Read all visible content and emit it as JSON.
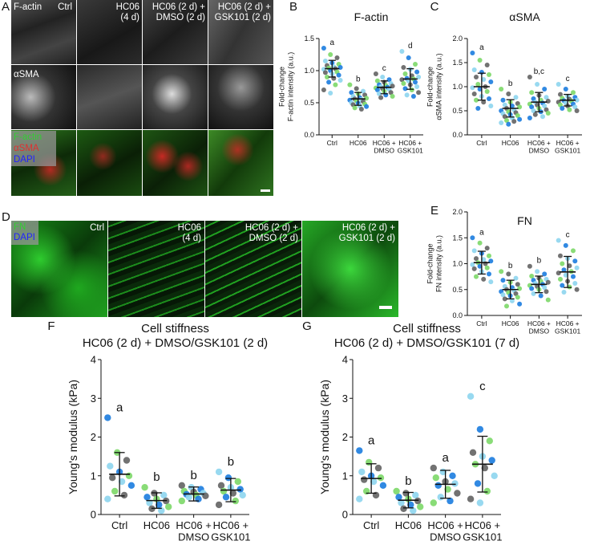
{
  "panels": {
    "A": {
      "letter": "A",
      "row_labels": [
        "F-actin",
        "αSMA"
      ],
      "col_labels": [
        "Ctrl",
        "HC06\n(4 d)",
        "HC06 (2 d) +\nDMSO (2 d)",
        "HC06 (2 d) +\nGSK101 (2 d)"
      ],
      "merge_legend": [
        "F-actin",
        "αSMA",
        "DAPI"
      ],
      "colors": {
        "factin": "#33cc33",
        "asma": "#e03030",
        "dapi": "#3a3aff"
      }
    },
    "D": {
      "letter": "D",
      "col_labels": [
        "Ctrl",
        "HC06\n(4 d)",
        "HC06 (2 d) +\nDMSO (2 d)",
        "HC06 (2 d) +\nGSK101 (2 d)"
      ],
      "legend": [
        "FN",
        "DAPI"
      ]
    }
  },
  "chart_data": [
    {
      "panel": "B",
      "type": "scatter",
      "title": "F-actin",
      "ylabel": "Fold-change\nF-actin intensity (a.u.)",
      "ylim": [
        0,
        1.5
      ],
      "yticks": [
        "0.0",
        "0.5",
        "1.0",
        "1.5"
      ],
      "categories": [
        "Ctrl",
        "HC06",
        "HC06 +\nDMSO",
        "HC06 +\nGSK101"
      ],
      "means": [
        1.03,
        0.56,
        0.74,
        0.87
      ],
      "sd": [
        0.13,
        0.1,
        0.1,
        0.16
      ],
      "letters": [
        "a",
        "b",
        "c",
        "d"
      ],
      "points": [
        [
          1.35,
          1.25,
          1.2,
          1.15,
          1.12,
          1.1,
          1.08,
          1.06,
          1.05,
          1.04,
          1.03,
          1.02,
          1.0,
          0.98,
          0.97,
          0.95,
          0.93,
          0.9,
          0.88,
          0.85,
          0.82,
          0.78,
          0.7,
          0.65
        ],
        [
          0.78,
          0.72,
          0.68,
          0.66,
          0.64,
          0.62,
          0.6,
          0.58,
          0.57,
          0.56,
          0.55,
          0.54,
          0.53,
          0.52,
          0.5,
          0.49,
          0.48,
          0.47,
          0.45,
          0.44,
          0.42,
          0.4
        ],
        [
          0.95,
          0.9,
          0.86,
          0.84,
          0.82,
          0.8,
          0.78,
          0.77,
          0.76,
          0.75,
          0.74,
          0.73,
          0.72,
          0.71,
          0.7,
          0.68,
          0.66,
          0.64,
          0.62,
          0.6,
          0.58
        ],
        [
          1.3,
          1.2,
          1.1,
          1.05,
          1.02,
          0.98,
          0.95,
          0.92,
          0.9,
          0.88,
          0.87,
          0.86,
          0.84,
          0.82,
          0.8,
          0.78,
          0.75,
          0.72,
          0.7,
          0.66,
          0.62,
          0.6
        ]
      ]
    },
    {
      "panel": "C",
      "type": "scatter",
      "title": "αSMA",
      "ylabel": "Fold-change\nαSMA intensity (a.u.)",
      "ylim": [
        0,
        2.0
      ],
      "yticks": [
        "0.0",
        "0.5",
        "1.0",
        "1.5",
        "2.0"
      ],
      "categories": [
        "Ctrl",
        "HC06",
        "HC06 +\nDMSO",
        "HC06 +\nGSK101"
      ],
      "means": [
        1.0,
        0.55,
        0.68,
        0.72
      ],
      "sd": [
        0.28,
        0.18,
        0.2,
        0.12
      ],
      "letters": [
        "a",
        "b",
        "b,c",
        "c"
      ],
      "points": [
        [
          1.7,
          1.55,
          1.45,
          1.35,
          1.3,
          1.25,
          1.2,
          1.15,
          1.1,
          1.05,
          1.0,
          0.98,
          0.95,
          0.9,
          0.85,
          0.8,
          0.75,
          0.72,
          0.68,
          0.6,
          0.55
        ],
        [
          0.95,
          0.85,
          0.78,
          0.72,
          0.68,
          0.65,
          0.62,
          0.6,
          0.58,
          0.55,
          0.52,
          0.5,
          0.48,
          0.46,
          0.44,
          0.42,
          0.4,
          0.38,
          0.35,
          0.32,
          0.3,
          0.28,
          0.25,
          0.22
        ],
        [
          1.2,
          1.05,
          0.95,
          0.88,
          0.82,
          0.78,
          0.75,
          0.72,
          0.7,
          0.68,
          0.66,
          0.64,
          0.62,
          0.6,
          0.58,
          0.55,
          0.52,
          0.5,
          0.48,
          0.45,
          0.42,
          0.38,
          0.35
        ],
        [
          1.05,
          0.95,
          0.88,
          0.84,
          0.8,
          0.78,
          0.76,
          0.74,
          0.72,
          0.71,
          0.7,
          0.68,
          0.66,
          0.64,
          0.62,
          0.6,
          0.58,
          0.55,
          0.52,
          0.5
        ]
      ]
    },
    {
      "panel": "E",
      "type": "scatter",
      "title": "FN",
      "ylabel": "Fold-change\nFN intensity (a.u.)",
      "ylim": [
        0,
        2.0
      ],
      "yticks": [
        "0.0",
        "0.5",
        "1.0",
        "1.5",
        "2.0"
      ],
      "categories": [
        "Ctrl",
        "HC06",
        "HC06 +\nDMSO",
        "HC06 +\nGSK101"
      ],
      "means": [
        1.02,
        0.5,
        0.6,
        0.84
      ],
      "sd": [
        0.22,
        0.18,
        0.16,
        0.3
      ],
      "letters": [
        "a",
        "b",
        "b",
        "c"
      ],
      "points": [
        [
          1.5,
          1.4,
          1.3,
          1.25,
          1.2,
          1.15,
          1.1,
          1.08,
          1.05,
          1.02,
          1.0,
          0.98,
          0.95,
          0.92,
          0.9,
          0.85,
          0.8,
          0.75,
          0.7,
          0.65
        ],
        [
          0.85,
          0.8,
          0.72,
          0.68,
          0.64,
          0.6,
          0.56,
          0.54,
          0.52,
          0.5,
          0.48,
          0.46,
          0.44,
          0.42,
          0.4,
          0.38,
          0.35,
          0.32,
          0.28,
          0.22,
          0.18
        ],
        [
          0.95,
          0.85,
          0.8,
          0.76,
          0.72,
          0.7,
          0.68,
          0.66,
          0.64,
          0.62,
          0.6,
          0.58,
          0.56,
          0.54,
          0.52,
          0.5,
          0.46,
          0.42,
          0.38,
          0.3
        ],
        [
          1.45,
          1.35,
          1.25,
          1.15,
          1.1,
          1.05,
          1.0,
          0.96,
          0.92,
          0.88,
          0.85,
          0.82,
          0.78,
          0.75,
          0.7,
          0.66,
          0.62,
          0.58,
          0.55,
          0.5,
          0.45
        ]
      ]
    },
    {
      "panel": "F",
      "type": "scatter",
      "title": "Cell stiffness",
      "subtitle": "HC06 (2 d) + DMSO/GSK101 (2 d)",
      "ylabel": "Young's modulus (kPa)",
      "ylim": [
        0,
        4
      ],
      "yticks": [
        "0",
        "1",
        "2",
        "3",
        "4"
      ],
      "categories": [
        "Ctrl",
        "HC06",
        "HC06 +\nDMSO",
        "HC06 +\nGSK101"
      ],
      "means": [
        1.04,
        0.36,
        0.53,
        0.63
      ],
      "sd": [
        0.56,
        0.2,
        0.18,
        0.3
      ],
      "letters": [
        "a",
        "b",
        "b",
        "b"
      ],
      "points": [
        [
          2.5,
          1.6,
          1.4,
          1.25,
          1.1,
          1.0,
          0.95,
          0.85,
          0.75,
          0.6,
          0.5,
          0.4
        ],
        [
          0.7,
          0.55,
          0.5,
          0.45,
          0.4,
          0.35,
          0.3,
          0.25,
          0.2,
          0.15,
          0.1
        ],
        [
          0.75,
          0.7,
          0.65,
          0.6,
          0.58,
          0.55,
          0.52,
          0.5,
          0.48,
          0.45,
          0.4,
          0.35
        ],
        [
          1.1,
          0.95,
          0.85,
          0.75,
          0.7,
          0.65,
          0.6,
          0.55,
          0.5,
          0.45,
          0.35,
          0.25
        ]
      ]
    },
    {
      "panel": "G",
      "type": "scatter",
      "title": "Cell stiffness",
      "subtitle": "HC06 (2 d) + DMSO/GSK101 (7 d)",
      "ylabel": "Young's modulus (kPa)",
      "ylim": [
        0,
        4
      ],
      "yticks": [
        "0",
        "1",
        "2",
        "3",
        "4"
      ],
      "categories": [
        "Ctrl",
        "HC06",
        "HC06 +\nDMSO",
        "HC06 +\nGSK101"
      ],
      "means": [
        0.93,
        0.37,
        0.78,
        1.3
      ],
      "sd": [
        0.38,
        0.2,
        0.36,
        0.72
      ],
      "letters": [
        "a",
        "b",
        "a",
        "c"
      ],
      "points": [
        [
          1.65,
          1.35,
          1.2,
          1.1,
          1.0,
          0.95,
          0.9,
          0.85,
          0.75,
          0.6,
          0.5,
          0.4
        ],
        [
          0.6,
          0.55,
          0.5,
          0.45,
          0.4,
          0.35,
          0.3,
          0.25,
          0.2,
          0.15,
          0.1
        ],
        [
          1.2,
          1.1,
          1.0,
          0.95,
          0.85,
          0.8,
          0.75,
          0.65,
          0.55,
          0.45,
          0.35,
          0.3
        ],
        [
          3.05,
          2.2,
          1.9,
          1.6,
          1.5,
          1.4,
          1.3,
          1.2,
          1.0,
          0.8,
          0.6,
          0.4,
          0.3
        ]
      ]
    }
  ],
  "point_colors": [
    "#1f7fe0",
    "#7fd96b",
    "#666666",
    "#8fd6ef"
  ]
}
